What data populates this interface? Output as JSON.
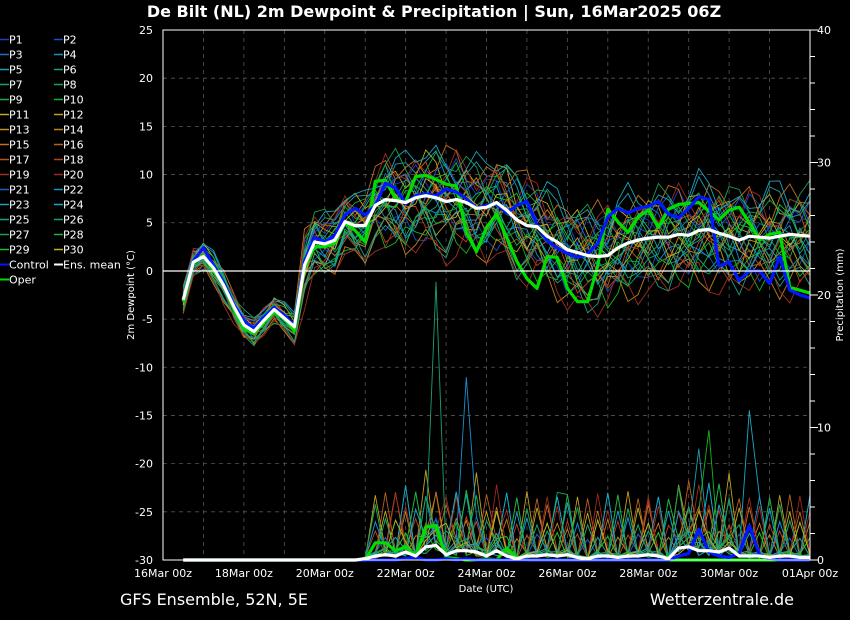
{
  "chart_data": {
    "type": "line",
    "title": "De Bilt  (NL)  2m Dewpoint & Precipitation | Sun, 16Mar2025 06Z",
    "xlabel": "Date (UTC)",
    "ylabel": "2m Dewpoint (°C)",
    "y2label": "Precipitation (mm)",
    "ylim": [
      -30,
      25
    ],
    "y2lim": [
      0,
      40
    ],
    "yticks": [
      "25",
      "20",
      "15",
      "10",
      "5",
      "0",
      "-5",
      "-10",
      "-15",
      "-20",
      "-25",
      "-30"
    ],
    "y2ticks": [
      "40",
      "30",
      "20",
      "10",
      "0"
    ],
    "xticks": [
      "16Mar 00z",
      "18Mar 00z",
      "20Mar 00z",
      "22Mar 00z",
      "24Mar 00z",
      "26Mar 00z",
      "28Mar 00z",
      "30Mar 00z",
      "01Apr 00z"
    ],
    "x_start": "16Mar 12z",
    "x_step_hours": 6,
    "grid": true,
    "legend_position": "left",
    "legend": [
      "P1",
      "P2",
      "P3",
      "P4",
      "P5",
      "P6",
      "P7",
      "P8",
      "P9",
      "P10",
      "P11",
      "P12",
      "P13",
      "P14",
      "P15",
      "P16",
      "P17",
      "P18",
      "P19",
      "P20",
      "P21",
      "P22",
      "P23",
      "P24",
      "P25",
      "P26",
      "P27",
      "P28",
      "P29",
      "P30",
      "Control",
      "Ens. mean",
      "Oper"
    ],
    "member_colors": [
      "#1a3fbf",
      "#1a4fbf",
      "#1a6fc8",
      "#1a8fc8",
      "#1aa0b0",
      "#1aa080",
      "#1aa070",
      "#1aa050",
      "#1ab030",
      "#10b820",
      "#b8b020",
      "#c0a020",
      "#c09020",
      "#c08020",
      "#c07020",
      "#b86020",
      "#b85020",
      "#b84020",
      "#a03020",
      "#a02820",
      "#1a5fc8",
      "#1a8fd0",
      "#1aa0b8",
      "#1aa8c0",
      "#1aa088",
      "#1aa070",
      "#1aa050",
      "#20b040",
      "#20c020",
      "#c0b020"
    ],
    "series": [
      {
        "name": "Ens. mean",
        "color": "#ffffff",
        "dewpoint": [
          -3.0,
          0.9,
          1.5,
          0.3,
          -1.5,
          -3.7,
          -5.6,
          -6.3,
          -5.1,
          -4.0,
          -4.9,
          -5.8,
          0.6,
          3.0,
          2.8,
          3.2,
          5.1,
          4.7,
          4.7,
          6.8,
          7.4,
          7.3,
          7.1,
          7.6,
          7.8,
          7.6,
          7.2,
          7.4,
          7.1,
          6.5,
          6.6,
          7.1,
          6.3,
          5.3,
          4.7,
          4.6,
          3.6,
          3.0,
          2.2,
          1.9,
          1.6,
          1.5,
          1.6,
          2.4,
          2.9,
          3.2,
          3.4,
          3.5,
          3.5,
          3.8,
          3.7,
          4.2,
          4.3,
          3.9,
          3.6,
          3.2,
          3.6,
          3.5,
          3.4,
          3.6,
          3.8,
          3.7,
          3.6
        ],
        "precip": [
          0,
          0,
          0,
          0,
          0,
          0,
          0,
          0,
          0,
          0,
          0,
          0,
          0,
          0,
          0,
          0,
          0,
          0,
          0.1,
          0.3,
          0.4,
          0.3,
          0.6,
          0.3,
          1.0,
          1.1,
          0.4,
          0.7,
          0.7,
          0.6,
          0.3,
          0.7,
          0.3,
          0.1,
          0.3,
          0.3,
          0.4,
          0.3,
          0.4,
          0.2,
          0.1,
          0.3,
          0.3,
          0.2,
          0.3,
          0.3,
          0.4,
          0.3,
          0.1,
          0.9,
          1.0,
          0.7,
          0.7,
          0.6,
          0.9,
          0.3,
          0.3,
          0.3,
          0.2,
          0.3,
          0.3,
          0.2,
          0.2
        ]
      },
      {
        "name": "Control",
        "color": "#0018ff",
        "dewpoint": [
          -3.0,
          1.0,
          2.4,
          0.6,
          -1.2,
          -3.5,
          -5.2,
          -6.0,
          -4.8,
          -3.8,
          -4.6,
          -5.7,
          1.0,
          3.5,
          3.0,
          3.7,
          5.8,
          6.5,
          5.8,
          6.8,
          9.1,
          8.6,
          7.0,
          7.8,
          8.0,
          7.8,
          8.5,
          8.2,
          7.5,
          6.5,
          6.8,
          7.0,
          6.0,
          6.8,
          7.2,
          4.8,
          3.1,
          2.4,
          1.8,
          1.4,
          1.8,
          2.8,
          5.6,
          6.5,
          6.0,
          6.5,
          6.7,
          7.2,
          5.9,
          5.5,
          6.5,
          7.7,
          7.4,
          0.5,
          0.9,
          -1.0,
          0.0,
          0.0,
          -1.3,
          1.5,
          -2.0,
          -2.5,
          -2.8
        ],
        "precip": [
          0,
          0,
          0,
          0,
          0,
          0,
          0,
          0,
          0,
          0,
          0,
          0,
          0,
          0,
          0,
          0,
          0,
          0,
          0,
          0,
          0,
          0,
          0.1,
          0.2,
          0,
          0,
          0.1,
          0,
          0.1,
          0,
          0,
          0,
          0,
          0,
          0,
          0,
          0,
          0,
          0,
          0,
          0,
          0,
          0,
          0,
          0,
          0,
          0,
          0,
          0,
          0.3,
          0.5,
          2.3,
          0.6,
          0.3,
          0.2,
          0.5,
          2.6,
          0.4,
          0.1,
          0,
          0,
          0,
          0
        ]
      },
      {
        "name": "Oper",
        "color": "#00dd00",
        "dewpoint": [
          -3.2,
          0.8,
          1.6,
          0.0,
          -1.5,
          -4.0,
          -6.0,
          -6.5,
          -5.3,
          -4.2,
          -5.0,
          -6.2,
          0.4,
          2.5,
          2.5,
          2.9,
          5.0,
          4.2,
          3.0,
          9.3,
          9.4,
          7.5,
          7.2,
          9.8,
          9.9,
          9.5,
          9.0,
          8.8,
          4.0,
          2.0,
          4.5,
          5.9,
          3.5,
          1.0,
          -0.8,
          -1.8,
          1.5,
          1.4,
          -1.8,
          -3.2,
          -3.2,
          0.5,
          6.4,
          5.1,
          4.0,
          5.6,
          6.3,
          4.5,
          6.4,
          6.9,
          7.0,
          7.1,
          6.2,
          5.3,
          6.3,
          6.6,
          5.0,
          3.2,
          3.8,
          4.0,
          -1.7,
          -2.0,
          -2.3
        ],
        "precip": [
          0,
          0,
          0,
          0,
          0,
          0,
          0,
          0,
          0,
          0,
          0,
          0,
          0,
          0,
          0,
          0,
          0,
          0,
          0,
          1.3,
          1.3,
          0.7,
          1.0,
          0.3,
          2.5,
          2.6,
          0.2,
          0.1,
          0,
          0,
          0.1,
          0,
          0.9,
          0.2,
          0,
          0,
          0,
          0,
          0,
          0,
          0,
          0,
          0,
          0,
          0,
          0,
          0,
          0,
          0,
          0,
          0,
          0,
          0,
          0,
          0,
          0,
          0,
          0,
          0,
          0,
          0,
          0,
          0
        ]
      }
    ],
    "members_note_omitted": false,
    "member_offsets": [
      1.8,
      -2.2,
      0.9,
      -1.1,
      2.6,
      -3.1,
      0.3,
      -0.6,
      1.4,
      -2.7,
      2.1,
      -1.6,
      0.6,
      -3.4,
      3.0,
      -0.9,
      1.1,
      -2.0,
      -4.0,
      2.4,
      1.6,
      -1.3,
      0.2,
      3.3,
      -2.4,
      -0.3,
      2.8,
      -1.8,
      0.8,
      -0.1
    ],
    "member_precip_peaks": [
      {
        "member": "P26",
        "time_index": 25,
        "mm": 21.0
      },
      {
        "member": "P22",
        "time_index": 28,
        "mm": 13.8
      },
      {
        "member": "P24",
        "time_index": 56,
        "mm": 11.3
      },
      {
        "member": "P10",
        "time_index": 52,
        "mm": 9.8
      },
      {
        "member": "P5",
        "time_index": 51,
        "mm": 8.4
      },
      {
        "member": "P12",
        "time_index": 29,
        "mm": 6.6
      },
      {
        "member": "P15",
        "time_index": 21,
        "mm": 5.1
      },
      {
        "member": "P17",
        "time_index": 46,
        "mm": 4.6
      },
      {
        "member": "P8",
        "time_index": 37,
        "mm": 5.1
      }
    ]
  },
  "footer": {
    "left": "GFS Ensemble, 52N, 5E",
    "right": "Wetterzentrale.de"
  }
}
